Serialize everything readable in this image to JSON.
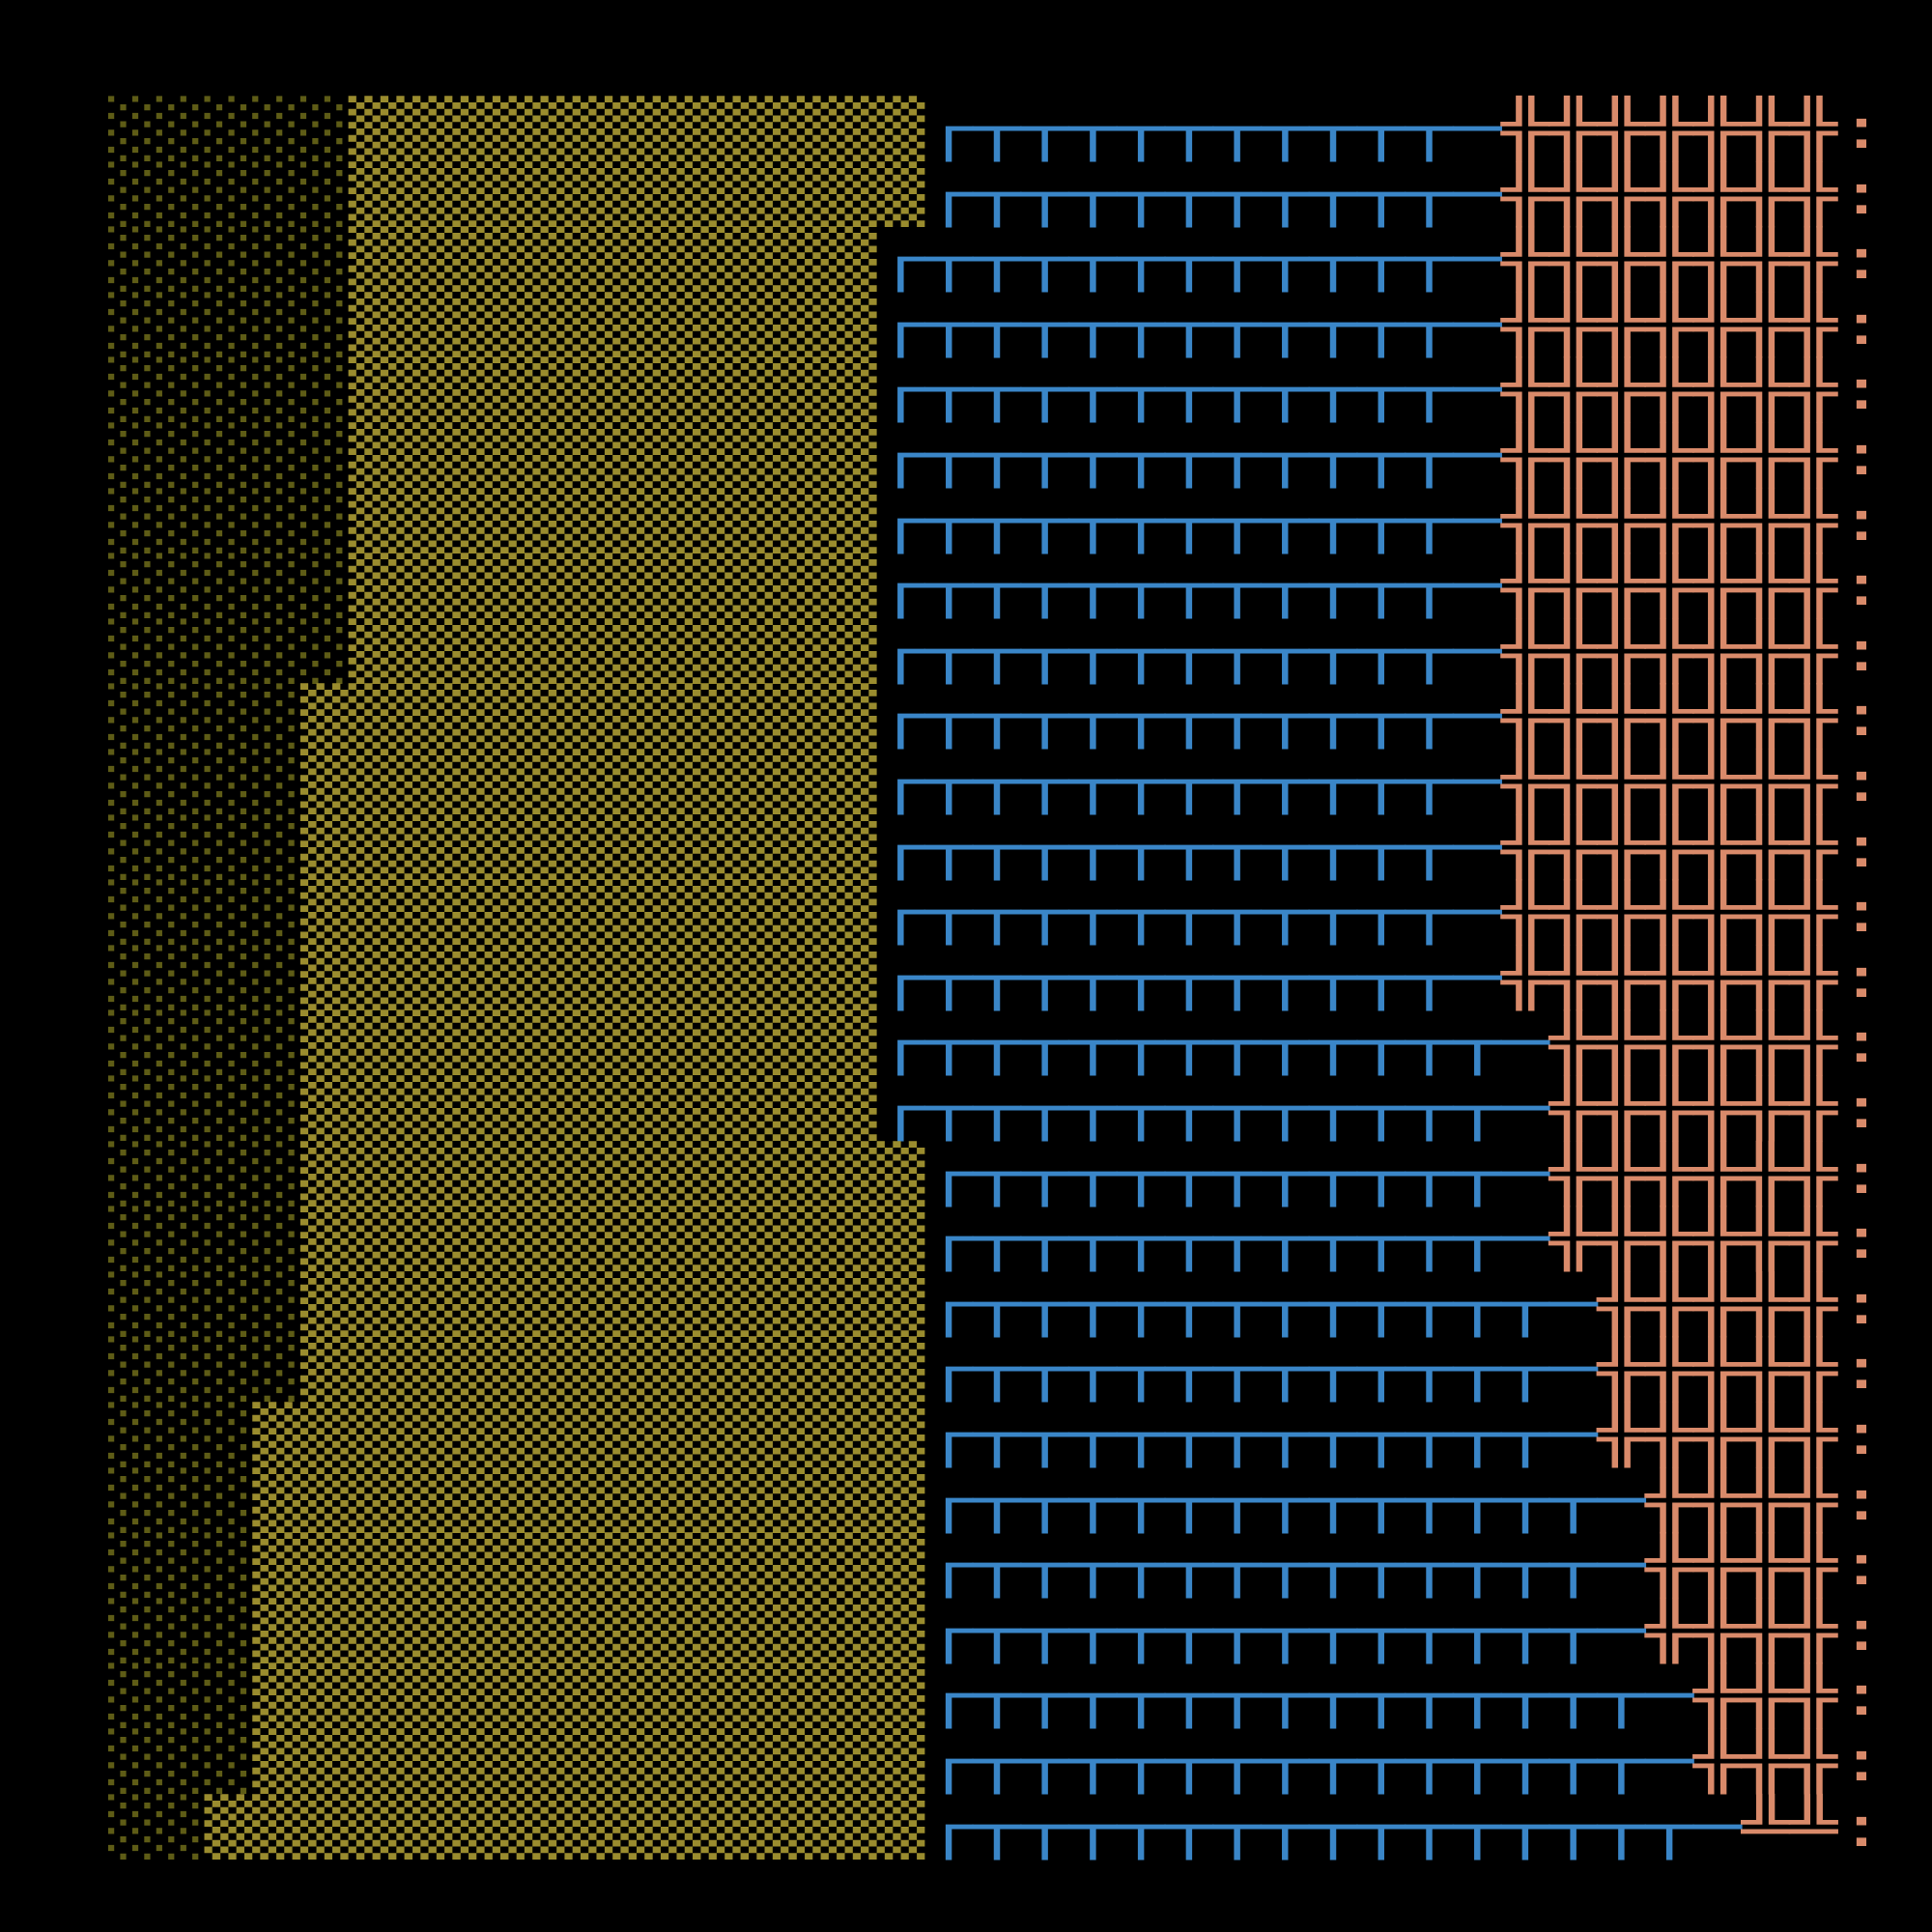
{
  "rows": [
    {
      "dim": "░░░░░",
      "shade": "▒▒▒▒▒▒▒▒▒▒▒▒",
      "box": "┌┬┬┬┬┬┬┬┬┬┬─",
      "cross": "╬╬╬╬╬╬╬",
      "end": ":"
    },
    {
      "dim": "░░░░░",
      "shade": "▒▒▒▒▒▒▒▒▒▒▒▒",
      "box": "┌┬┬┬┬┬┬┬┬┬┬─",
      "cross": "╬╬╬╬╬╬╬",
      "end": ":"
    },
    {
      "dim": "░░░░░",
      "shade": "▒▒▒▒▒▒▒▒▒▒▒",
      "box": "┌┬┬┬┬┬┬┬┬┬┬┬─",
      "cross": "╬╬╬╬╬╬╬",
      "end": ":"
    },
    {
      "dim": "░░░░░",
      "shade": "▒▒▒▒▒▒▒▒▒▒▒",
      "box": "┌┬┬┬┬┬┬┬┬┬┬┬─",
      "cross": "╬╬╬╬╬╬╬",
      "end": ":"
    },
    {
      "dim": "░░░░░",
      "shade": "▒▒▒▒▒▒▒▒▒▒▒",
      "box": "┌┬┬┬┬┬┬┬┬┬┬┬─",
      "cross": "╬╬╬╬╬╬╬",
      "end": ":"
    },
    {
      "dim": "░░░░░",
      "shade": "▒▒▒▒▒▒▒▒▒▒▒",
      "box": "┌┬┬┬┬┬┬┬┬┬┬┬─",
      "cross": "╬╬╬╬╬╬╬",
      "end": ":"
    },
    {
      "dim": "░░░░░",
      "shade": "▒▒▒▒▒▒▒▒▒▒▒",
      "box": "┌┬┬┬┬┬┬┬┬┬┬┬─",
      "cross": "╬╬╬╬╬╬╬",
      "end": ":"
    },
    {
      "dim": "░░░░░",
      "shade": "▒▒▒▒▒▒▒▒▒▒▒",
      "box": "┌┬┬┬┬┬┬┬┬┬┬┬─",
      "cross": "╬╬╬╬╬╬╬",
      "end": ":"
    },
    {
      "dim": "░░░░░",
      "shade": "▒▒▒▒▒▒▒▒▒▒▒",
      "box": "┌┬┬┬┬┬┬┬┬┬┬┬─",
      "cross": "╬╬╬╬╬╬╬",
      "end": ":"
    },
    {
      "dim": "░░░░",
      "shade": "▒▒▒▒▒▒▒▒▒▒▒▒",
      "box": "┌┬┬┬┬┬┬┬┬┬┬┬─",
      "cross": "╬╬╬╬╬╬╬",
      "end": ":"
    },
    {
      "dim": "░░░░",
      "shade": "▒▒▒▒▒▒▒▒▒▒▒▒",
      "box": "┌┬┬┬┬┬┬┬┬┬┬┬─",
      "cross": "╬╬╬╬╬╬╬",
      "end": ":"
    },
    {
      "dim": "░░░░",
      "shade": "▒▒▒▒▒▒▒▒▒▒▒▒",
      "box": "┌┬┬┬┬┬┬┬┬┬┬┬─",
      "cross": "╬╬╬╬╬╬╬",
      "end": ":"
    },
    {
      "dim": "░░░░",
      "shade": "▒▒▒▒▒▒▒▒▒▒▒▒",
      "box": "┌┬┬┬┬┬┬┬┬┬┬┬─",
      "cross": "╬╬╬╬╬╬╬",
      "end": ":"
    },
    {
      "dim": "░░░░",
      "shade": "▒▒▒▒▒▒▒▒▒▒▒▒",
      "box": "┌┬┬┬┬┬┬┬┬┬┬┬─",
      "cross": "╬╬╬╬╬╬╬",
      "end": ":"
    },
    {
      "dim": "░░░░",
      "shade": "▒▒▒▒▒▒▒▒▒▒▒▒",
      "box": "┌┬┬┬┬┬┬┬┬┬┬┬┬─",
      "cross": "╬╬╬╬╬╬",
      "end": ":"
    },
    {
      "dim": "░░░░",
      "shade": "▒▒▒▒▒▒▒▒▒▒▒▒",
      "box": "┌┬┬┬┬┬┬┬┬┬┬┬┬─",
      "cross": "╬╬╬╬╬╬",
      "end": ":"
    },
    {
      "dim": "░░░░",
      "shade": "▒▒▒▒▒▒▒▒▒▒▒▒▒",
      "box": "┌┬┬┬┬┬┬┬┬┬┬┬─",
      "cross": "╬╬╬╬╬╬",
      "end": ":"
    },
    {
      "dim": "░░░░",
      "shade": "▒▒▒▒▒▒▒▒▒▒▒▒▒",
      "box": "┌┬┬┬┬┬┬┬┬┬┬┬─",
      "cross": "╬╬╬╬╬╬",
      "end": ":"
    },
    {
      "dim": "░░░░",
      "shade": "▒▒▒▒▒▒▒▒▒▒▒▒▒",
      "box": "┌┬┬┬┬┬┬┬┬┬┬┬┬─",
      "cross": "╬╬╬╬╬",
      "end": ":"
    },
    {
      "dim": "░░░░",
      "shade": "▒▒▒▒▒▒▒▒▒▒▒▒▒",
      "box": "┌┬┬┬┬┬┬┬┬┬┬┬┬─",
      "cross": "╬╬╬╬╬",
      "end": ":"
    },
    {
      "dim": "░░░",
      "shade": "▒▒▒▒▒▒▒▒▒▒▒▒▒▒",
      "box": "┌┬┬┬┬┬┬┬┬┬┬┬┬─",
      "cross": "╬╬╬╬╬",
      "end": ":"
    },
    {
      "dim": "░░░",
      "shade": "▒▒▒▒▒▒▒▒▒▒▒▒▒▒",
      "box": "┌┬┬┬┬┬┬┬┬┬┬┬┬┬─",
      "cross": "╬╬╬╬",
      "end": ":"
    },
    {
      "dim": "░░░",
      "shade": "▒▒▒▒▒▒▒▒▒▒▒▒▒▒",
      "box": "┌┬┬┬┬┬┬┬┬┬┬┬┬┬─",
      "cross": "╬╬╬╬",
      "end": ":"
    },
    {
      "dim": "░░░",
      "shade": "▒▒▒▒▒▒▒▒▒▒▒▒▒▒",
      "box": "┌┬┬┬┬┬┬┬┬┬┬┬┬┬─",
      "cross": "╬╬╬╬",
      "end": ":"
    },
    {
      "dim": "░░░",
      "shade": "▒▒▒▒▒▒▒▒▒▒▒▒▒▒",
      "box": "┌┬┬┬┬┬┬┬┬┬┬┬┬┬┬─",
      "cross": "╬╬╬",
      "end": ":"
    },
    {
      "dim": "░░░",
      "shade": "▒▒▒▒▒▒▒▒▒▒▒▒▒▒",
      "box": "┌┬┬┬┬┬┬┬┬┬┬┬┬┬┬─",
      "cross": "╬╬╬",
      "end": ":"
    },
    {
      "dim": "░░",
      "shade": "▒▒▒▒▒▒▒▒▒▒▒▒▒▒▒",
      "box": "┌┬┬┬┬┬┬┬┬┬┬┬┬┬┬┬─",
      "cross": "╩╩",
      "end": ":"
    }
  ]
}
